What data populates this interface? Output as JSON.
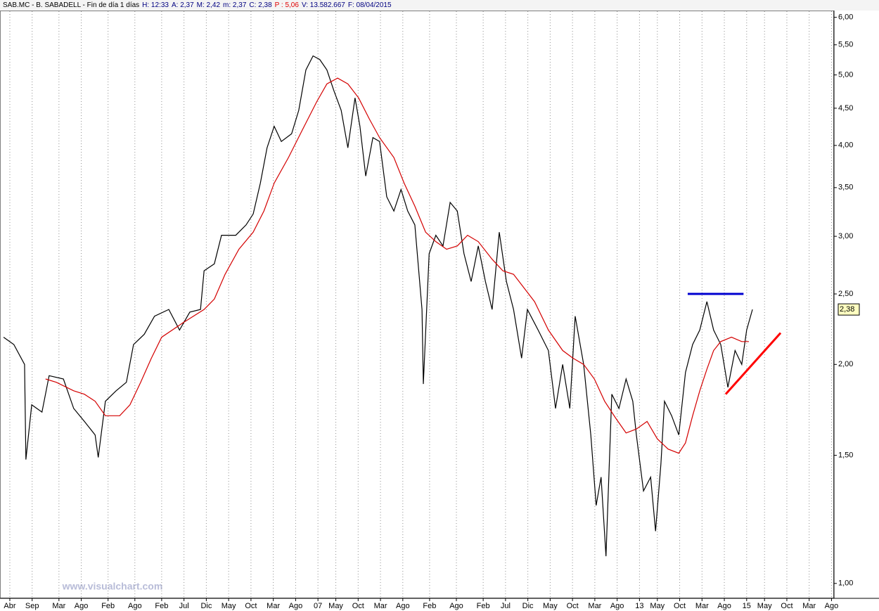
{
  "chart_data": {
    "type": "line",
    "header": [
      {
        "text": "SAB.MC - B. SABADELL - Fin de día 1 días",
        "color": "#000000"
      },
      {
        "text": "H: 12:33",
        "color": "#000080"
      },
      {
        "text": "A: 2,37",
        "color": "#000080"
      },
      {
        "text": "M: 2,42",
        "color": "#000080"
      },
      {
        "text": "m: 2,37",
        "color": "#000080"
      },
      {
        "text": "C: 2,38",
        "color": "#000080"
      },
      {
        "text": "P : 5,06",
        "color": "#e00000"
      },
      {
        "text": "V: 13.582.667",
        "color": "#000080"
      },
      {
        "text": "F: 08/04/2015",
        "color": "#000080"
      }
    ],
    "watermark": "www.visualchart.com",
    "log_scale": true,
    "grid": true,
    "xlim": [
      -2.2,
      184.4
    ],
    "ylim": [
      0.956,
      6.13
    ],
    "xticks": [
      {
        "value": 0,
        "label": "Abr"
      },
      {
        "value": 5,
        "label": "Sep"
      },
      {
        "value": 11,
        "label": "Mar"
      },
      {
        "value": 16,
        "label": "Ago"
      },
      {
        "value": 22,
        "label": "Feb"
      },
      {
        "value": 28,
        "label": "Ago"
      },
      {
        "value": 34,
        "label": "Feb"
      },
      {
        "value": 39,
        "label": "Jul"
      },
      {
        "value": 44,
        "label": "Dic"
      },
      {
        "value": 49,
        "label": "May"
      },
      {
        "value": 54,
        "label": "Oct"
      },
      {
        "value": 59,
        "label": "Mar"
      },
      {
        "value": 64,
        "label": "Ago"
      },
      {
        "value": 69,
        "label": "07"
      },
      {
        "value": 73,
        "label": "May"
      },
      {
        "value": 78,
        "label": "Oct"
      },
      {
        "value": 83,
        "label": "Mar"
      },
      {
        "value": 88,
        "label": "Ago"
      },
      {
        "value": 94,
        "label": "Feb"
      },
      {
        "value": 100,
        "label": "Ago"
      },
      {
        "value": 106,
        "label": "Feb"
      },
      {
        "value": 111,
        "label": "Jul"
      },
      {
        "value": 116,
        "label": "Dic"
      },
      {
        "value": 121,
        "label": "May"
      },
      {
        "value": 126,
        "label": "Oct"
      },
      {
        "value": 131,
        "label": "Mar"
      },
      {
        "value": 136,
        "label": "Ago"
      },
      {
        "value": 141,
        "label": "13"
      },
      {
        "value": 145,
        "label": "May"
      },
      {
        "value": 150,
        "label": "Oct"
      },
      {
        "value": 155,
        "label": "Mar"
      },
      {
        "value": 160,
        "label": "Ago"
      },
      {
        "value": 165,
        "label": "15"
      },
      {
        "value": 169,
        "label": "May"
      },
      {
        "value": 174,
        "label": "Oct"
      },
      {
        "value": 179,
        "label": "Mar"
      },
      {
        "value": 184,
        "label": "Ago"
      }
    ],
    "yticks": [
      {
        "value": 1,
        "label": "1,00"
      },
      {
        "value": 1.5,
        "label": "1,50"
      },
      {
        "value": 2,
        "label": "2,00"
      },
      {
        "value": 2.5,
        "label": "2,50"
      },
      {
        "value": 3,
        "label": "3,00"
      },
      {
        "value": 3.5,
        "label": "3,50"
      },
      {
        "value": 4,
        "label": "4,00"
      },
      {
        "value": 4.5,
        "label": "4,50"
      },
      {
        "value": 5,
        "label": "5,00"
      },
      {
        "value": 5.5,
        "label": "5,50"
      },
      {
        "value": 6,
        "label": "6,00"
      }
    ],
    "last_price": {
      "value": 2.38,
      "label": "2,38"
    },
    "series": [
      {
        "color": "#000000",
        "x": [
          -1.4,
          0.9,
          3.3,
          3.6,
          4.9,
          7.2,
          8.8,
          12.0,
          14.3,
          16.7,
          19.1,
          19.8,
          21.4,
          23.8,
          26.1,
          27.7,
          30.1,
          32.4,
          35.6,
          38.0,
          40.3,
          42.7,
          43.5,
          45.8,
          47.4,
          50.6,
          52.9,
          54.5,
          56.1,
          57.6,
          59.2,
          60.8,
          63.1,
          64.7,
          66.3,
          67.9,
          69.4,
          71.0,
          72.6,
          74.2,
          75.7,
          77.3,
          78.4,
          79.7,
          81.3,
          82.8,
          84.4,
          86.0,
          87.6,
          89.1,
          90.7,
          92.3,
          92.6,
          93.9,
          95.4,
          97.0,
          98.6,
          100.2,
          101.7,
          103.3,
          104.9,
          106.5,
          108.0,
          109.6,
          111.2,
          112.8,
          114.6,
          115.9,
          118.3,
          120.6,
          122.2,
          123.8,
          125.4,
          126.6,
          128.5,
          130.1,
          131.3,
          132.4,
          133.5,
          134.8,
          136.4,
          138.0,
          139.5,
          140.3,
          141.9,
          143.5,
          144.6,
          145.8,
          146.6,
          148.2,
          149.8,
          151.3,
          152.9,
          154.5,
          156.1,
          157.6,
          159.2,
          160.8,
          162.4,
          163.9,
          165.0,
          166.3
        ],
        "values": [
          2.18,
          2.13,
          2.0,
          1.48,
          1.76,
          1.72,
          1.93,
          1.91,
          1.74,
          1.67,
          1.6,
          1.49,
          1.78,
          1.84,
          1.89,
          2.13,
          2.2,
          2.33,
          2.38,
          2.23,
          2.36,
          2.38,
          2.69,
          2.75,
          3.01,
          3.01,
          3.11,
          3.22,
          3.55,
          3.97,
          4.25,
          4.05,
          4.15,
          4.47,
          5.08,
          5.31,
          5.25,
          5.08,
          4.75,
          4.47,
          3.97,
          4.65,
          4.25,
          3.63,
          4.1,
          4.05,
          3.4,
          3.25,
          3.48,
          3.25,
          3.11,
          2.38,
          1.88,
          2.84,
          3.01,
          2.91,
          3.34,
          3.25,
          2.84,
          2.6,
          2.91,
          2.6,
          2.38,
          3.04,
          2.6,
          2.38,
          2.04,
          2.38,
          2.23,
          2.09,
          1.74,
          2.0,
          1.74,
          2.33,
          2.0,
          1.6,
          1.28,
          1.4,
          1.09,
          1.82,
          1.74,
          1.91,
          1.78,
          1.6,
          1.34,
          1.4,
          1.18,
          1.46,
          1.78,
          1.7,
          1.6,
          1.95,
          2.13,
          2.23,
          2.44,
          2.23,
          2.13,
          1.86,
          2.09,
          2.0,
          2.23,
          2.38
        ]
      },
      {
        "color": "#d40000",
        "x": [
          8.0,
          10.4,
          14.3,
          16.7,
          19.1,
          21.4,
          24.6,
          26.9,
          29.3,
          31.7,
          34.0,
          38.7,
          43.5,
          45.8,
          48.2,
          51.3,
          54.5,
          56.9,
          59.2,
          62.4,
          65.5,
          68.7,
          71.0,
          73.4,
          75.7,
          78.1,
          80.5,
          82.8,
          86.0,
          88.3,
          90.7,
          93.1,
          95.4,
          97.8,
          100.2,
          102.5,
          104.9,
          108.0,
          110.4,
          112.8,
          115.1,
          117.5,
          120.6,
          123.8,
          126.1,
          128.5,
          130.9,
          133.2,
          135.6,
          138.0,
          140.3,
          142.7,
          145.0,
          147.4,
          149.8,
          151.3,
          152.9,
          154.5,
          156.1,
          157.6,
          159.2,
          161.6,
          163.9,
          165.5
        ],
        "values": [
          1.91,
          1.89,
          1.84,
          1.82,
          1.78,
          1.7,
          1.7,
          1.76,
          1.89,
          2.04,
          2.18,
          2.28,
          2.38,
          2.46,
          2.66,
          2.88,
          3.04,
          3.25,
          3.55,
          3.85,
          4.2,
          4.59,
          4.86,
          4.95,
          4.86,
          4.65,
          4.35,
          4.1,
          3.85,
          3.55,
          3.3,
          3.04,
          2.95,
          2.88,
          2.91,
          3.01,
          2.95,
          2.79,
          2.69,
          2.66,
          2.55,
          2.44,
          2.23,
          2.09,
          2.04,
          2.0,
          1.91,
          1.78,
          1.69,
          1.61,
          1.63,
          1.67,
          1.58,
          1.53,
          1.51,
          1.56,
          1.7,
          1.84,
          1.97,
          2.09,
          2.15,
          2.18,
          2.15,
          2.15
        ]
      }
    ],
    "drawn_lines": [
      {
        "color": "#0000d0",
        "x": [
          151.8,
          164.3
        ],
        "values": [
          2.5,
          2.5
        ]
      },
      {
        "color": "#ff0000",
        "x": [
          160.3,
          172.6
        ],
        "values": [
          1.82,
          2.21
        ]
      }
    ]
  }
}
